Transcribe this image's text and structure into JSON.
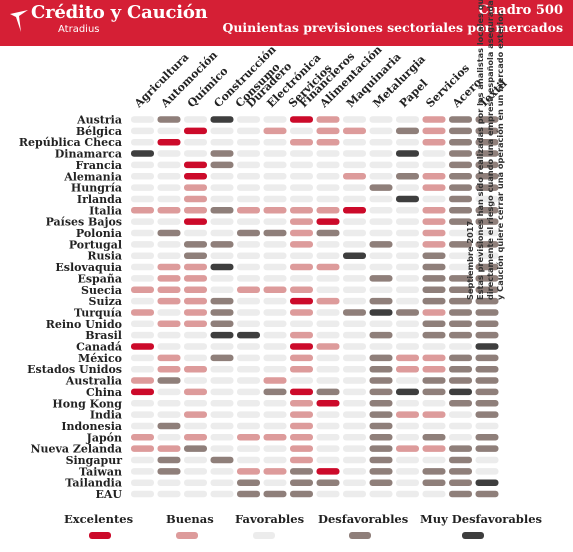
{
  "header": {
    "brand_name": "Crédito y Caución",
    "brand_sub": "Atradius",
    "cuadro": "Cuadro 500",
    "subtitle": "Quinientas previsiones sectoriales por mercados"
  },
  "note_lines": [
    "Septiembre 2017",
    "Estas previsiones han sido realizadas por los analistas locales que valoran",
    "directamente el riesgo cuando una empresa española asegurada por Crédito",
    "y Caución quiere cerrar una operación en un mercado exterior."
  ],
  "chart_data": {
    "type": "heatmap",
    "title": "Quinientas previsiones sectoriales por mercados",
    "columns": [
      "Agricultura",
      "Automoción",
      "Químico",
      "Construcción",
      "Consumo Duradero",
      "Electrónica",
      "Servicios Financieros",
      "Alimentación",
      "Maquinaria",
      "Metalurgia",
      "Papel",
      "Servicios",
      "Acero",
      "Textil"
    ],
    "rows": [
      "Austria",
      "Bélgica",
      "República Checa",
      "Dinamarca",
      "Francia",
      "Alemania",
      "Hungría",
      "Irlanda",
      "Italia",
      "Países Bajos",
      "Polonia",
      "Portugal",
      "Rusia",
      "Eslovaquia",
      "España",
      "Suecia",
      "Suiza",
      "Turquía",
      "Reino Unido",
      "Brasil",
      "Canadá",
      "México",
      "Estados Unidos",
      "Australia",
      "China",
      "Hong Kong",
      "India",
      "Indonesia",
      "Japón",
      "Nueva Zelanda",
      "Singapur",
      "Taiwan",
      "Tailandia",
      "EAU"
    ],
    "levels": [
      "Excelentes",
      "Buenas",
      "Favorables",
      "Desfavorables",
      "Muy Desfavorables"
    ],
    "level_colors": [
      "#cc0a2a",
      "#dd9b9b",
      "#ececec",
      "#8f7f7a",
      "#3e3e3e"
    ],
    "values": [
      [
        3,
        4,
        3,
        5,
        3,
        3,
        1,
        2,
        3,
        3,
        3,
        2,
        4,
        4
      ],
      [
        3,
        3,
        1,
        3,
        3,
        2,
        3,
        2,
        2,
        3,
        4,
        2,
        4,
        4
      ],
      [
        3,
        1,
        3,
        3,
        3,
        3,
        2,
        2,
        3,
        3,
        3,
        2,
        4,
        4
      ],
      [
        5,
        3,
        3,
        4,
        3,
        3,
        3,
        3,
        3,
        3,
        5,
        3,
        4,
        4
      ],
      [
        3,
        3,
        1,
        4,
        3,
        3,
        3,
        3,
        3,
        3,
        3,
        3,
        4,
        4
      ],
      [
        3,
        3,
        1,
        3,
        3,
        3,
        3,
        3,
        2,
        3,
        4,
        2,
        4,
        4
      ],
      [
        3,
        3,
        2,
        3,
        3,
        3,
        3,
        3,
        3,
        4,
        3,
        2,
        4,
        4
      ],
      [
        3,
        3,
        2,
        3,
        3,
        3,
        3,
        3,
        3,
        3,
        5,
        3,
        4,
        3
      ],
      [
        2,
        2,
        2,
        4,
        2,
        2,
        2,
        2,
        1,
        3,
        3,
        2,
        4,
        4
      ],
      [
        3,
        3,
        1,
        3,
        3,
        3,
        2,
        1,
        3,
        3,
        3,
        2,
        4,
        4
      ],
      [
        3,
        4,
        3,
        3,
        4,
        4,
        2,
        4,
        3,
        3,
        3,
        2,
        3,
        3
      ],
      [
        3,
        3,
        4,
        4,
        3,
        3,
        2,
        3,
        3,
        4,
        3,
        2,
        4,
        4
      ],
      [
        3,
        3,
        4,
        3,
        3,
        3,
        3,
        3,
        5,
        3,
        3,
        4,
        3,
        3
      ],
      [
        3,
        2,
        2,
        5,
        3,
        3,
        2,
        2,
        3,
        3,
        3,
        4,
        3,
        4
      ],
      [
        3,
        2,
        2,
        3,
        3,
        3,
        3,
        3,
        3,
        4,
        3,
        4,
        4,
        4
      ],
      [
        2,
        2,
        2,
        3,
        2,
        2,
        2,
        3,
        3,
        3,
        3,
        4,
        4,
        4
      ],
      [
        3,
        2,
        2,
        4,
        3,
        3,
        1,
        2,
        3,
        4,
        3,
        4,
        4,
        4
      ],
      [
        2,
        3,
        2,
        4,
        3,
        3,
        2,
        3,
        4,
        5,
        4,
        2,
        4,
        4
      ],
      [
        3,
        2,
        2,
        4,
        3,
        3,
        3,
        3,
        3,
        3,
        3,
        4,
        4,
        4
      ],
      [
        3,
        3,
        3,
        5,
        5,
        3,
        2,
        3,
        3,
        4,
        3,
        4,
        4,
        4
      ],
      [
        1,
        3,
        3,
        3,
        3,
        3,
        1,
        2,
        3,
        3,
        3,
        3,
        3,
        5
      ],
      [
        3,
        2,
        3,
        4,
        3,
        3,
        2,
        3,
        3,
        4,
        2,
        2,
        4,
        4
      ],
      [
        3,
        2,
        2,
        3,
        3,
        3,
        2,
        3,
        3,
        4,
        2,
        2,
        4,
        4
      ],
      [
        2,
        4,
        3,
        3,
        3,
        2,
        3,
        3,
        3,
        4,
        3,
        4,
        4,
        4
      ],
      [
        1,
        3,
        2,
        3,
        3,
        4,
        1,
        4,
        3,
        4,
        5,
        4,
        5,
        4
      ],
      [
        3,
        3,
        3,
        3,
        3,
        3,
        2,
        1,
        3,
        4,
        3,
        3,
        4,
        4
      ],
      [
        3,
        3,
        2,
        3,
        3,
        3,
        2,
        3,
        3,
        4,
        2,
        2,
        3,
        4
      ],
      [
        3,
        4,
        3,
        3,
        3,
        3,
        2,
        3,
        3,
        4,
        3,
        3,
        3,
        3
      ],
      [
        2,
        3,
        2,
        3,
        2,
        2,
        2,
        3,
        3,
        4,
        3,
        4,
        3,
        4
      ],
      [
        2,
        2,
        4,
        3,
        3,
        3,
        2,
        3,
        3,
        4,
        2,
        2,
        4,
        4
      ],
      [
        3,
        4,
        3,
        4,
        3,
        3,
        2,
        3,
        3,
        4,
        3,
        3,
        4,
        3
      ],
      [
        3,
        4,
        3,
        3,
        2,
        2,
        4,
        1,
        3,
        4,
        3,
        4,
        4,
        3
      ],
      [
        3,
        3,
        3,
        3,
        4,
        3,
        4,
        4,
        3,
        4,
        3,
        4,
        4,
        5
      ],
      [
        3,
        3,
        3,
        3,
        4,
        4,
        4,
        3,
        3,
        3,
        3,
        3,
        4,
        4
      ]
    ]
  }
}
